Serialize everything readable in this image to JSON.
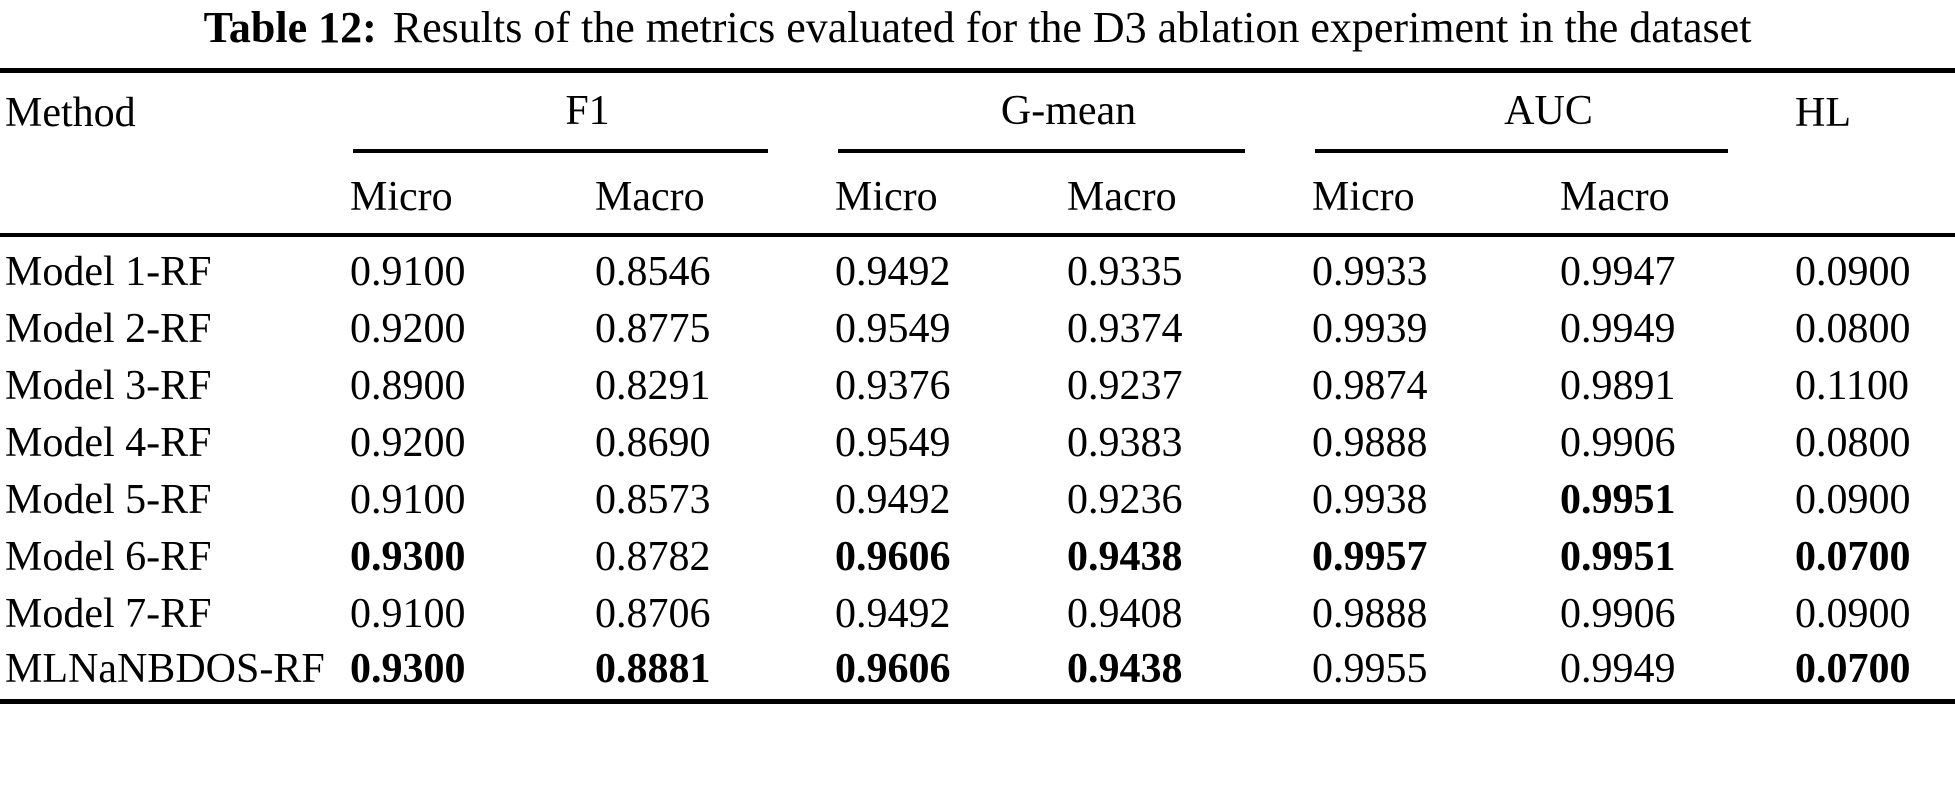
{
  "title": {
    "label": "Table 12:",
    "text": "Results of the metrics evaluated for the D3 ablation experiment in the dataset"
  },
  "table": {
    "method_header": "Method",
    "hl_header": "HL",
    "groups": [
      {
        "label": "F1",
        "sub": [
          "Micro",
          "Macro"
        ]
      },
      {
        "label": "G-mean",
        "sub": [
          "Micro",
          "Macro"
        ]
      },
      {
        "label": "AUC",
        "sub": [
          "Micro",
          "Macro"
        ]
      }
    ],
    "rows": [
      {
        "method": "Model 1-RF",
        "values": [
          "0.9100",
          "0.8546",
          "0.9492",
          "0.9335",
          "0.9933",
          "0.9947",
          "0.0900"
        ],
        "bold": [
          0,
          0,
          0,
          0,
          0,
          0,
          0
        ]
      },
      {
        "method": "Model 2-RF",
        "values": [
          "0.9200",
          "0.8775",
          "0.9549",
          "0.9374",
          "0.9939",
          "0.9949",
          "0.0800"
        ],
        "bold": [
          0,
          0,
          0,
          0,
          0,
          0,
          0
        ]
      },
      {
        "method": "Model 3-RF",
        "values": [
          "0.8900",
          "0.8291",
          "0.9376",
          "0.9237",
          "0.9874",
          "0.9891",
          "0.1100"
        ],
        "bold": [
          0,
          0,
          0,
          0,
          0,
          0,
          0
        ]
      },
      {
        "method": "Model 4-RF",
        "values": [
          "0.9200",
          "0.8690",
          "0.9549",
          "0.9383",
          "0.9888",
          "0.9906",
          "0.0800"
        ],
        "bold": [
          0,
          0,
          0,
          0,
          0,
          0,
          0
        ]
      },
      {
        "method": "Model 5-RF",
        "values": [
          "0.9100",
          "0.8573",
          "0.9492",
          "0.9236",
          "0.9938",
          "0.9951",
          "0.0900"
        ],
        "bold": [
          0,
          0,
          0,
          0,
          0,
          1,
          0
        ]
      },
      {
        "method": "Model 6-RF",
        "values": [
          "0.9300",
          "0.8782",
          "0.9606",
          "0.9438",
          "0.9957",
          "0.9951",
          "0.0700"
        ],
        "bold": [
          1,
          0,
          1,
          1,
          1,
          1,
          1
        ]
      },
      {
        "method": "Model 7-RF",
        "values": [
          "0.9100",
          "0.8706",
          "0.9492",
          "0.9408",
          "0.9888",
          "0.9906",
          "0.0900"
        ],
        "bold": [
          0,
          0,
          0,
          0,
          0,
          0,
          0
        ]
      },
      {
        "method": "MLNaNBDOS-RF",
        "values": [
          "0.9300",
          "0.8881",
          "0.9606",
          "0.9438",
          "0.9955",
          "0.9949",
          "0.0700"
        ],
        "bold": [
          1,
          1,
          1,
          1,
          0,
          0,
          1
        ]
      }
    ]
  }
}
